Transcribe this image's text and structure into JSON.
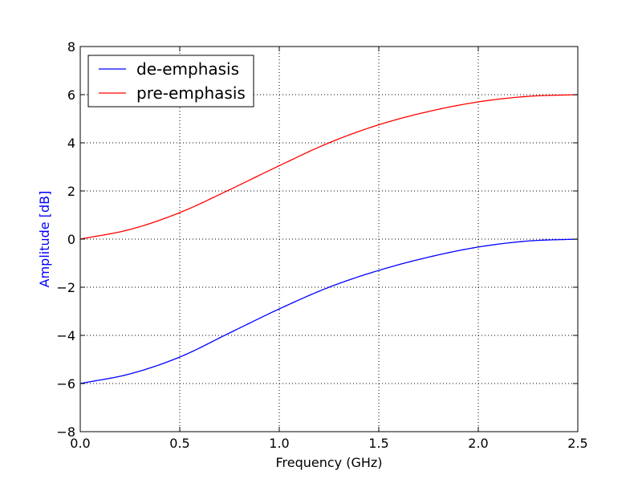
{
  "chart_data": {
    "type": "line",
    "title": "",
    "xlabel": "Frequency (GHz)",
    "ylabel": "Amplitude [dB]",
    "ylabel_color": "#0000ff",
    "xlim": [
      0.0,
      2.5
    ],
    "ylim": [
      -8,
      8
    ],
    "x_ticks": [
      "0.0",
      "0.5",
      "1.0",
      "1.5",
      "2.0",
      "2.5"
    ],
    "y_ticks": [
      "−8",
      "−6",
      "−4",
      "−2",
      "0",
      "2",
      "4",
      "6",
      "8"
    ],
    "grid": true,
    "legend_position": "top-left",
    "x": [
      0.0,
      0.25,
      0.5,
      0.75,
      1.0,
      1.25,
      1.5,
      1.75,
      2.0,
      2.25,
      2.5
    ],
    "series": [
      {
        "name": "de-emphasis",
        "color": "#0000ff",
        "values": [
          -6.0,
          -5.6,
          -4.9,
          -3.9,
          -2.9,
          -2.0,
          -1.3,
          -0.75,
          -0.33,
          -0.08,
          0.0
        ]
      },
      {
        "name": "pre-emphasis",
        "color": "#ff0000",
        "values": [
          0.0,
          0.4,
          1.1,
          2.05,
          3.05,
          4.0,
          4.75,
          5.3,
          5.7,
          5.93,
          6.0
        ]
      }
    ]
  }
}
